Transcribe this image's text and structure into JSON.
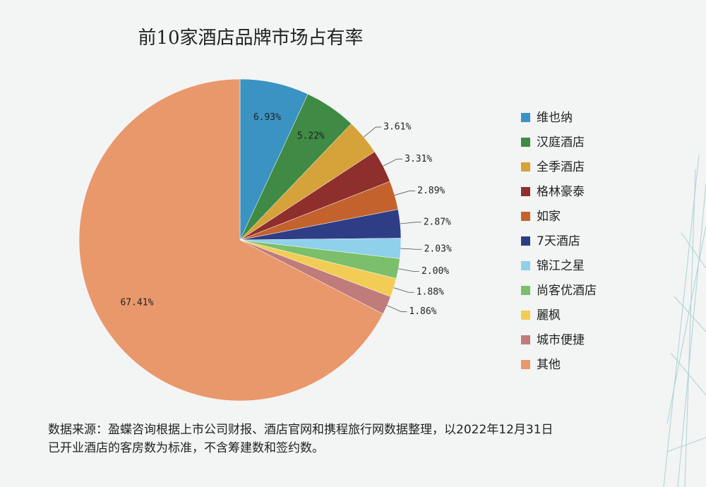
{
  "chart_data": {
    "type": "pie",
    "title": "前10家酒店品牌市场占有率",
    "categories": [
      "维也纳",
      "汉庭酒店",
      "全季酒店",
      "格林豪泰",
      "如家",
      "7天酒店",
      "锦江之星",
      "尚客优酒店",
      "麗枫",
      "城市便捷",
      "其他"
    ],
    "values": [
      6.93,
      5.22,
      3.61,
      3.31,
      2.89,
      2.87,
      2.03,
      2.0,
      1.88,
      1.86,
      67.41
    ],
    "value_labels": [
      "6.93%",
      "5.22%",
      "3.61%",
      "3.31%",
      "2.89%",
      "2.87%",
      "2.03%",
      "2.00%",
      "1.88%",
      "1.86%",
      "67.41%"
    ],
    "colors": [
      "#3a93c3",
      "#3f8a45",
      "#d6a23a",
      "#8e2f2d",
      "#c4622e",
      "#2e3e86",
      "#8fd0ea",
      "#7bbf6a",
      "#f2cc55",
      "#c07b7b",
      "#e9986b"
    ],
    "legend": "right",
    "note": [
      "数据来源：盈蝶咨询根据上市公司财报、酒店官网和携程旅行网数据整理，以2022年12月31日",
      "已开业酒店的客房数为标准，不含筹建数和签约数。"
    ]
  }
}
